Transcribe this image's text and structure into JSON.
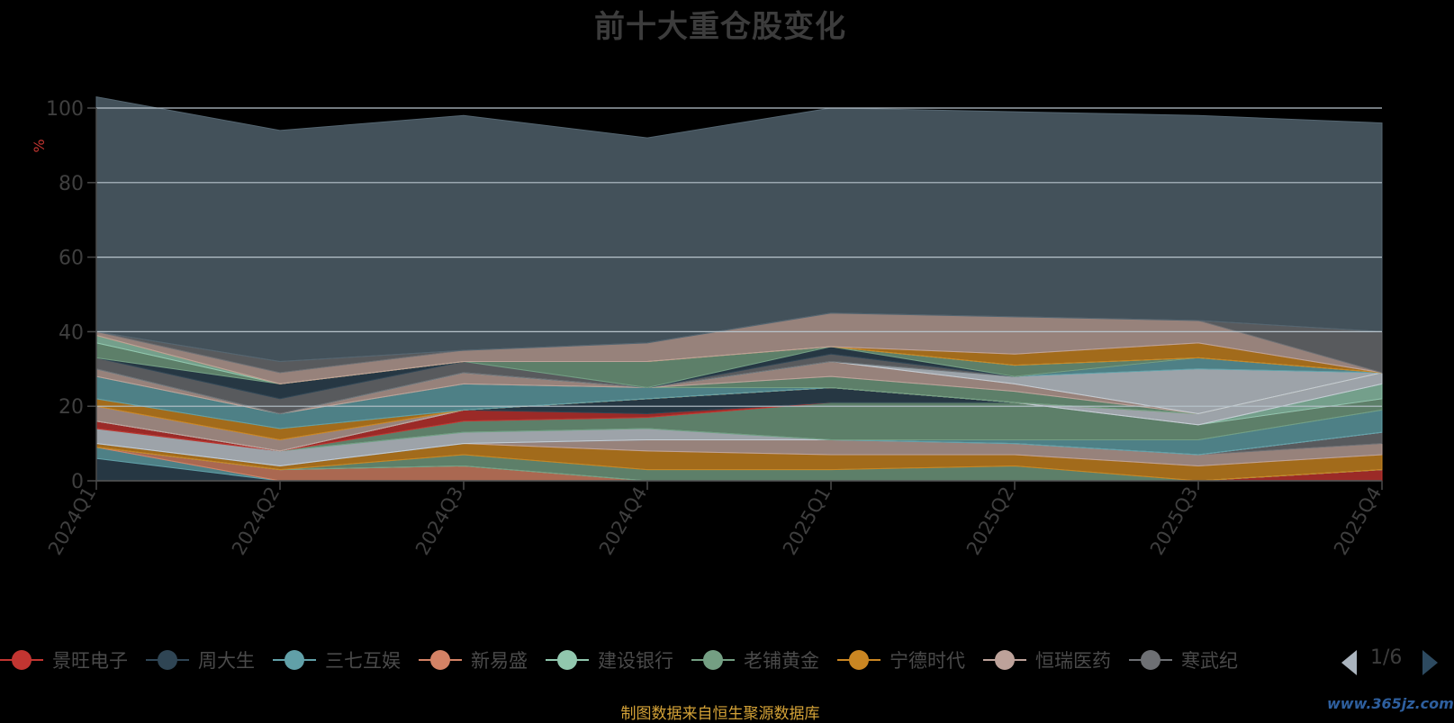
{
  "title": "前十大重仓股变化",
  "legend": {
    "items": [
      {
        "label": "景旺电子",
        "color": "#c23531"
      },
      {
        "label": "周大生",
        "color": "#2f4554"
      },
      {
        "label": "三七互娱",
        "color": "#61a0a8"
      },
      {
        "label": "新易盛",
        "color": "#d48265"
      },
      {
        "label": "建设银行",
        "color": "#91c7ae"
      },
      {
        "label": "老铺黄金",
        "color": "#749f83"
      },
      {
        "label": "宁德时代",
        "color": "#ca8622"
      },
      {
        "label": "恒瑞医药",
        "color": "#bda29a"
      },
      {
        "label": "寒武纪",
        "color": "#6e7074"
      }
    ],
    "pager": "1/6"
  },
  "source_note": "制图数据来自恒生聚源数据库",
  "watermark": "www.365jz.com",
  "chart_data": {
    "type": "area",
    "stacked": true,
    "title": "前十大重仓股变化",
    "ylabel": "%",
    "xlabel": "",
    "ylim": [
      0,
      100
    ],
    "yticks": [
      0,
      20,
      40,
      60,
      80,
      100
    ],
    "grid": true,
    "categories": [
      "2024Q1",
      "2024Q2",
      "2024Q3",
      "2024Q4",
      "2025Q1",
      "2025Q2",
      "2025Q3",
      "2025Q4"
    ],
    "series": [
      {
        "color": "#c23531",
        "values": [
          0,
          0,
          0,
          0,
          0,
          0,
          0,
          3
        ]
      },
      {
        "color": "#2f4554",
        "values": [
          6,
          0,
          0,
          0,
          0,
          0,
          0,
          0
        ]
      },
      {
        "color": "#61a0a8",
        "values": [
          3,
          0,
          0,
          0,
          0,
          0,
          0,
          0
        ]
      },
      {
        "color": "#d48265",
        "values": [
          0,
          3,
          4,
          0,
          0,
          0,
          0,
          0
        ]
      },
      {
        "color": "#91c7ae",
        "values": [
          0,
          0,
          0,
          0,
          0,
          0,
          0,
          0
        ]
      },
      {
        "color": "#749f83",
        "values": [
          0,
          0,
          3,
          3,
          3,
          4,
          0,
          0
        ]
      },
      {
        "color": "#ca8622",
        "values": [
          1,
          1,
          3,
          5,
          4,
          3,
          4,
          4
        ]
      },
      {
        "color": "#bda29a",
        "values": [
          0,
          0,
          0,
          3,
          4,
          3,
          3,
          3
        ]
      },
      {
        "color": "#6e7074",
        "values": [
          0,
          0,
          0,
          0,
          0,
          0,
          0,
          3
        ]
      },
      {
        "color": "#546570",
        "values": [
          0,
          0,
          0,
          0,
          0,
          0,
          0,
          0
        ]
      },
      {
        "color": "#c4ccd3",
        "values": [
          4,
          4,
          3,
          3,
          0,
          0,
          0,
          0
        ]
      },
      {
        "color": "#61a0a8",
        "values": [
          0,
          0,
          0,
          0,
          0,
          1,
          4,
          6
        ]
      },
      {
        "color": "#749f83",
        "values": [
          0,
          0,
          3,
          3,
          10,
          10,
          4,
          3
        ]
      },
      {
        "color": "#c23531",
        "values": [
          2,
          0,
          3,
          1,
          0,
          0,
          0,
          0
        ]
      },
      {
        "color": "#2f4554",
        "values": [
          0,
          0,
          0,
          4,
          4,
          0,
          0,
          0
        ]
      },
      {
        "color": "#91c7ae",
        "values": [
          0,
          0,
          0,
          0,
          0,
          0,
          0,
          4
        ]
      },
      {
        "color": "#c4ccd3",
        "values": [
          0,
          0,
          0,
          0,
          0,
          0,
          3,
          3
        ]
      },
      {
        "color": "#bda29a",
        "values": [
          4,
          3,
          0,
          0,
          0,
          0,
          0,
          0
        ]
      },
      {
        "color": "#ca8622",
        "values": [
          2,
          3,
          0,
          0,
          0,
          0,
          0,
          0
        ]
      },
      {
        "color": "#61a0a8",
        "values": [
          6,
          4,
          7,
          3,
          0,
          0,
          0,
          0
        ]
      },
      {
        "color": "#749f83",
        "values": [
          0,
          0,
          0,
          0,
          3,
          3,
          0,
          0
        ]
      },
      {
        "color": "#bda29a",
        "values": [
          2,
          0,
          3,
          0,
          4,
          2,
          0,
          0
        ]
      },
      {
        "color": "#c4ccd3",
        "values": [
          0,
          0,
          0,
          0,
          0,
          2,
          12,
          0
        ]
      },
      {
        "color": "#61a0a8",
        "values": [
          0,
          0,
          0,
          0,
          0,
          0,
          3,
          0
        ]
      },
      {
        "color": "#6e7074",
        "values": [
          3,
          4,
          3,
          0,
          2,
          0,
          0,
          0
        ]
      },
      {
        "color": "#2f4554",
        "values": [
          0,
          4,
          0,
          0,
          2,
          0,
          0,
          0
        ]
      },
      {
        "color": "#749f83",
        "values": [
          4,
          0,
          0,
          7,
          0,
          3,
          0,
          0
        ]
      },
      {
        "color": "#91c7ae",
        "values": [
          2,
          0,
          0,
          0,
          0,
          0,
          0,
          0
        ]
      },
      {
        "color": "#ca8622",
        "values": [
          0,
          0,
          0,
          0,
          0,
          3,
          4,
          0
        ]
      },
      {
        "color": "#bda29a",
        "values": [
          1,
          3,
          3,
          5,
          9,
          10,
          6,
          0
        ]
      },
      {
        "color": "#6e7074",
        "values": [
          0,
          3,
          0,
          0,
          0,
          0,
          0,
          11
        ]
      },
      {
        "color": "#546570",
        "values": [
          63,
          62,
          63,
          55,
          55,
          55,
          55,
          56
        ]
      }
    ]
  }
}
